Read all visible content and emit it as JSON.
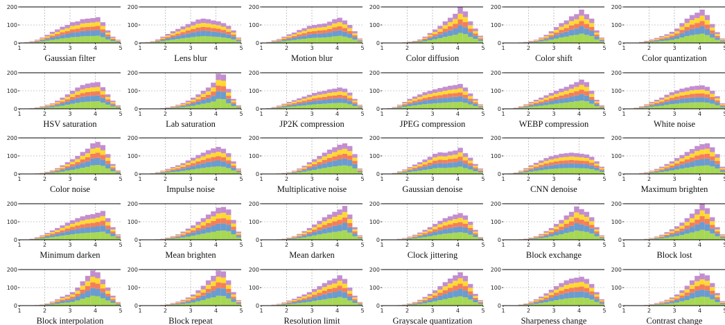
{
  "chart_data": {
    "type": "bar",
    "layout": "small multiples, 5 rows x 6 columns, stacked histograms",
    "stacked": true,
    "grid": true,
    "x_ticks": [
      "1",
      "2",
      "3",
      "4",
      "5"
    ],
    "y_ticks": [
      "0",
      "100",
      "200"
    ],
    "xlim": [
      1,
      5
    ],
    "ylim": [
      0,
      200
    ],
    "bins": [
      1.0,
      1.2,
      1.4,
      1.6,
      1.8,
      2.0,
      2.2,
      2.4,
      2.6,
      2.8,
      3.0,
      3.2,
      3.4,
      3.6,
      3.8,
      4.0,
      4.2,
      4.4,
      4.6,
      4.8
    ],
    "bin_width": 0.2,
    "series_colors": [
      "#a6d854",
      "#6a9ccf",
      "#f47e5a",
      "#ffd92f",
      "#c38dd0"
    ],
    "series_fractions": [
      0.28,
      0.22,
      0.16,
      0.16,
      0.18
    ],
    "panels": [
      {
        "title": "Gaussian filter",
        "totals": [
          2,
          5,
          10,
          18,
          30,
          45,
          62,
          75,
          90,
          100,
          115,
          120,
          132,
          135,
          138,
          143,
          115,
          70,
          35,
          18
        ]
      },
      {
        "title": "Lens blur",
        "totals": [
          3,
          5,
          10,
          20,
          35,
          50,
          65,
          78,
          92,
          105,
          118,
          130,
          135,
          132,
          125,
          120,
          110,
          95,
          70,
          30
        ]
      },
      {
        "title": "Motion blur",
        "totals": [
          2,
          6,
          14,
          22,
          35,
          48,
          58,
          72,
          82,
          95,
          100,
          105,
          108,
          118,
          132,
          140,
          125,
          100,
          65,
          25
        ]
      },
      {
        "title": "Color diffusion",
        "totals": [
          0,
          0,
          1,
          2,
          4,
          8,
          12,
          20,
          35,
          55,
          75,
          95,
          120,
          140,
          162,
          198,
          175,
          120,
          80,
          40
        ]
      },
      {
        "title": "Color shift",
        "totals": [
          0,
          0,
          1,
          3,
          6,
          12,
          18,
          30,
          45,
          65,
          88,
          110,
          125,
          148,
          160,
          185,
          160,
          135,
          70,
          30
        ]
      },
      {
        "title": "Color quantization",
        "totals": [
          0,
          1,
          2,
          6,
          12,
          20,
          28,
          38,
          48,
          62,
          80,
          110,
          135,
          155,
          168,
          185,
          155,
          105,
          60,
          25
        ]
      },
      {
        "title": "HSV saturation",
        "totals": [
          0,
          2,
          4,
          8,
          14,
          22,
          30,
          45,
          62,
          80,
          100,
          118,
          132,
          140,
          145,
          148,
          120,
          80,
          45,
          20
        ]
      },
      {
        "title": "Lab saturation",
        "totals": [
          0,
          0,
          1,
          2,
          4,
          8,
          14,
          22,
          32,
          45,
          62,
          80,
          100,
          118,
          145,
          195,
          190,
          110,
          55,
          20
        ]
      },
      {
        "title": "JP2K compression",
        "totals": [
          1,
          4,
          10,
          18,
          28,
          38,
          48,
          58,
          68,
          78,
          88,
          95,
          100,
          108,
          112,
          118,
          112,
          90,
          55,
          22
        ]
      },
      {
        "title": "JPEG compression",
        "totals": [
          0,
          4,
          10,
          22,
          38,
          55,
          68,
          80,
          92,
          100,
          108,
          115,
          122,
          128,
          132,
          138,
          118,
          85,
          55,
          25
        ]
      },
      {
        "title": "WEBP compression",
        "totals": [
          0,
          2,
          6,
          14,
          25,
          38,
          50,
          62,
          75,
          88,
          100,
          112,
          122,
          135,
          148,
          162,
          148,
          100,
          50,
          20
        ]
      },
      {
        "title": "White noise",
        "totals": [
          0,
          2,
          6,
          14,
          25,
          38,
          50,
          62,
          78,
          92,
          102,
          112,
          118,
          125,
          128,
          130,
          122,
          100,
          70,
          30
        ]
      },
      {
        "title": "Color noise",
        "totals": [
          0,
          0,
          1,
          3,
          6,
          12,
          20,
          32,
          48,
          65,
          82,
          100,
          122,
          140,
          170,
          178,
          160,
          110,
          55,
          20
        ]
      },
      {
        "title": "Impulse noise",
        "totals": [
          0,
          1,
          4,
          10,
          18,
          28,
          38,
          48,
          60,
          75,
          90,
          105,
          118,
          132,
          142,
          150,
          140,
          115,
          70,
          30
        ]
      },
      {
        "title": "Multiplicative noise",
        "totals": [
          0,
          0,
          1,
          3,
          6,
          10,
          18,
          30,
          45,
          65,
          82,
          100,
          118,
          135,
          148,
          162,
          170,
          155,
          110,
          30
        ]
      },
      {
        "title": "Gaussian denoise",
        "totals": [
          0,
          2,
          6,
          14,
          25,
          38,
          52,
          65,
          80,
          95,
          112,
          120,
          118,
          125,
          130,
          145,
          115,
          90,
          55,
          30
        ]
      },
      {
        "title": "CNN denoise",
        "totals": [
          0,
          3,
          8,
          18,
          32,
          48,
          62,
          75,
          88,
          98,
          105,
          112,
          115,
          118,
          115,
          112,
          108,
          95,
          70,
          40
        ]
      },
      {
        "title": "Maximum brighten",
        "totals": [
          0,
          0,
          2,
          5,
          10,
          18,
          28,
          40,
          55,
          70,
          88,
          105,
          122,
          138,
          155,
          165,
          170,
          148,
          110,
          40
        ]
      },
      {
        "title": "Minimum darken",
        "totals": [
          0,
          2,
          6,
          14,
          25,
          38,
          52,
          65,
          80,
          95,
          108,
          120,
          130,
          138,
          142,
          150,
          160,
          120,
          70,
          30
        ]
      },
      {
        "title": "Mean brighten",
        "totals": [
          0,
          0,
          1,
          3,
          6,
          12,
          20,
          30,
          45,
          62,
          80,
          100,
          120,
          140,
          158,
          178,
          182,
          168,
          110,
          45
        ]
      },
      {
        "title": "Mean darken",
        "totals": [
          0,
          0,
          1,
          3,
          6,
          12,
          20,
          32,
          48,
          65,
          85,
          105,
          125,
          140,
          155,
          168,
          188,
          140,
          70,
          25
        ]
      },
      {
        "title": "Clock jittering",
        "totals": [
          0,
          0,
          2,
          5,
          10,
          18,
          28,
          40,
          55,
          70,
          88,
          105,
          120,
          130,
          140,
          148,
          135,
          100,
          55,
          15
        ]
      },
      {
        "title": "Block exchange",
        "totals": [
          0,
          0,
          1,
          3,
          6,
          12,
          20,
          32,
          48,
          65,
          88,
          110,
          135,
          155,
          185,
          170,
          155,
          125,
          70,
          25
        ]
      },
      {
        "title": "Block lost",
        "totals": [
          0,
          0,
          1,
          2,
          5,
          10,
          18,
          28,
          42,
          58,
          75,
          95,
          120,
          145,
          170,
          198,
          175,
          125,
          70,
          30
        ]
      },
      {
        "title": "Block interpolation",
        "totals": [
          0,
          0,
          1,
          3,
          6,
          12,
          22,
          35,
          50,
          60,
          75,
          100,
          135,
          165,
          195,
          185,
          145,
          100,
          55,
          20
        ]
      },
      {
        "title": "Block repeat",
        "totals": [
          0,
          0,
          1,
          2,
          4,
          8,
          14,
          22,
          32,
          45,
          62,
          85,
          110,
          140,
          165,
          195,
          190,
          140,
          75,
          30
        ]
      },
      {
        "title": "Resolution limit",
        "totals": [
          0,
          2,
          5,
          10,
          18,
          28,
          38,
          50,
          62,
          75,
          92,
          108,
          125,
          140,
          150,
          168,
          148,
          100,
          55,
          20
        ]
      },
      {
        "title": "Grayscale quantization",
        "totals": [
          0,
          0,
          1,
          3,
          6,
          12,
          20,
          32,
          48,
          65,
          85,
          108,
          130,
          150,
          168,
          185,
          165,
          120,
          65,
          30
        ]
      },
      {
        "title": "Sharpeness change",
        "totals": [
          0,
          0,
          2,
          6,
          12,
          22,
          35,
          50,
          68,
          88,
          108,
          125,
          140,
          150,
          155,
          160,
          148,
          120,
          75,
          35
        ]
      },
      {
        "title": "Contrast change",
        "totals": [
          0,
          0,
          1,
          2,
          4,
          8,
          14,
          22,
          32,
          45,
          62,
          85,
          110,
          140,
          165,
          178,
          168,
          125,
          70,
          25
        ]
      }
    ]
  }
}
